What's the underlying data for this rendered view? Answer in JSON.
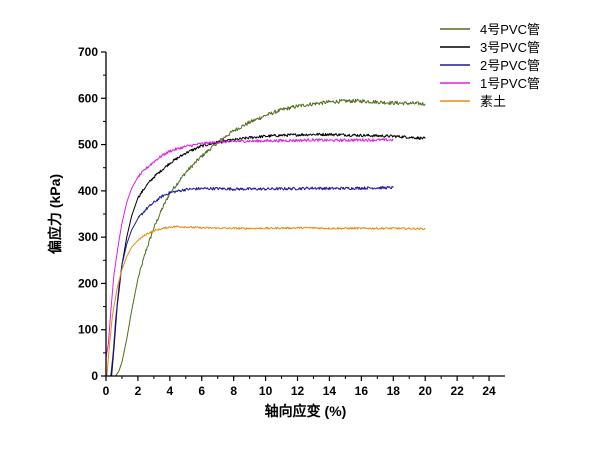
{
  "chart_data": {
    "type": "line",
    "title": "",
    "xlabel": "轴向应变 (%)",
    "ylabel": "偏应力 (kPa)",
    "xlim": [
      0,
      25
    ],
    "ylim": [
      0,
      700
    ],
    "xticks": [
      "0",
      "2",
      "4",
      "6",
      "8",
      "10",
      "12",
      "14",
      "16",
      "18",
      "20",
      "22",
      "24"
    ],
    "yticks": [
      "0",
      "100",
      "200",
      "300",
      "400",
      "500",
      "600",
      "700"
    ],
    "grid": false,
    "legend_position": "top-right",
    "series": [
      {
        "name": "4号PVC管",
        "color": "#4f6e1a",
        "amplitude": 4,
        "points": [
          [
            0.6,
            0
          ],
          [
            0.8,
            10
          ],
          [
            1.0,
            30
          ],
          [
            1.3,
            80
          ],
          [
            1.6,
            140
          ],
          [
            2.0,
            210
          ],
          [
            2.5,
            270
          ],
          [
            3.0,
            320
          ],
          [
            3.5,
            360
          ],
          [
            4.0,
            395
          ],
          [
            5.0,
            440
          ],
          [
            6.0,
            475
          ],
          [
            7.0,
            505
          ],
          [
            8.0,
            530
          ],
          [
            9.0,
            548
          ],
          [
            10.0,
            563
          ],
          [
            11.0,
            575
          ],
          [
            12.0,
            583
          ],
          [
            13.0,
            588
          ],
          [
            14.0,
            592
          ],
          [
            15.0,
            594
          ],
          [
            16.0,
            594
          ],
          [
            17.0,
            592
          ],
          [
            18.0,
            590
          ],
          [
            19.0,
            589
          ],
          [
            20.0,
            588
          ]
        ]
      },
      {
        "name": "3号PVC管",
        "color": "#000000",
        "amplitude": 3,
        "points": [
          [
            0.35,
            0
          ],
          [
            0.5,
            60
          ],
          [
            0.7,
            150
          ],
          [
            1.0,
            240
          ],
          [
            1.3,
            300
          ],
          [
            1.6,
            345
          ],
          [
            2.0,
            385
          ],
          [
            2.5,
            410
          ],
          [
            3.0,
            430
          ],
          [
            4.0,
            460
          ],
          [
            5.0,
            482
          ],
          [
            6.0,
            497
          ],
          [
            7.0,
            505
          ],
          [
            8.0,
            510
          ],
          [
            9.0,
            515
          ],
          [
            10.0,
            518
          ],
          [
            11.0,
            520
          ],
          [
            12.0,
            521
          ],
          [
            13.0,
            522
          ],
          [
            14.0,
            522
          ],
          [
            15.0,
            521
          ],
          [
            16.0,
            520
          ],
          [
            17.0,
            519
          ],
          [
            18.0,
            518
          ],
          [
            19.0,
            516
          ],
          [
            20.0,
            513
          ]
        ]
      },
      {
        "name": "2号PVC管",
        "color": "#1a1aa0",
        "amplitude": 3,
        "points": [
          [
            0.3,
            0
          ],
          [
            0.45,
            50
          ],
          [
            0.6,
            120
          ],
          [
            0.8,
            190
          ],
          [
            1.0,
            240
          ],
          [
            1.3,
            285
          ],
          [
            1.6,
            315
          ],
          [
            2.0,
            340
          ],
          [
            2.5,
            360
          ],
          [
            3.0,
            375
          ],
          [
            3.5,
            388
          ],
          [
            4.0,
            396
          ],
          [
            5.0,
            403
          ],
          [
            6.0,
            405
          ],
          [
            7.0,
            405
          ],
          [
            8.0,
            404
          ],
          [
            10.0,
            404
          ],
          [
            12.0,
            405
          ],
          [
            13.0,
            406
          ],
          [
            14.0,
            405
          ],
          [
            16.0,
            406
          ],
          [
            18.0,
            407
          ]
        ]
      },
      {
        "name": "1号PVC管",
        "color": "#e020e0",
        "amplitude": 3,
        "points": [
          [
            0.0,
            40
          ],
          [
            0.15,
            70
          ],
          [
            0.3,
            140
          ],
          [
            0.5,
            220
          ],
          [
            0.8,
            290
          ],
          [
            1.0,
            330
          ],
          [
            1.3,
            375
          ],
          [
            1.6,
            405
          ],
          [
            2.0,
            430
          ],
          [
            2.5,
            448
          ],
          [
            3.0,
            463
          ],
          [
            3.5,
            476
          ],
          [
            4.0,
            486
          ],
          [
            5.0,
            496
          ],
          [
            6.0,
            502
          ],
          [
            7.0,
            505
          ],
          [
            8.0,
            507
          ],
          [
            10.0,
            508
          ],
          [
            12.0,
            509
          ],
          [
            13.0,
            510
          ],
          [
            14.0,
            509
          ],
          [
            16.0,
            510
          ],
          [
            18.0,
            510
          ]
        ]
      },
      {
        "name": "素土",
        "color": "#e88a10",
        "amplitude": 2,
        "points": [
          [
            0.05,
            0
          ],
          [
            0.2,
            60
          ],
          [
            0.4,
            130
          ],
          [
            0.7,
            190
          ],
          [
            1.0,
            230
          ],
          [
            1.3,
            258
          ],
          [
            1.6,
            278
          ],
          [
            2.0,
            293
          ],
          [
            2.5,
            306
          ],
          [
            3.0,
            314
          ],
          [
            3.5,
            318
          ],
          [
            4.0,
            322
          ],
          [
            4.5,
            323
          ],
          [
            5.0,
            322
          ],
          [
            6.0,
            320
          ],
          [
            8.0,
            319
          ],
          [
            10.0,
            319
          ],
          [
            12.0,
            320
          ],
          [
            13.0,
            320
          ],
          [
            14.0,
            319
          ],
          [
            16.0,
            319
          ],
          [
            18.0,
            319
          ],
          [
            20.0,
            318
          ]
        ]
      }
    ]
  }
}
